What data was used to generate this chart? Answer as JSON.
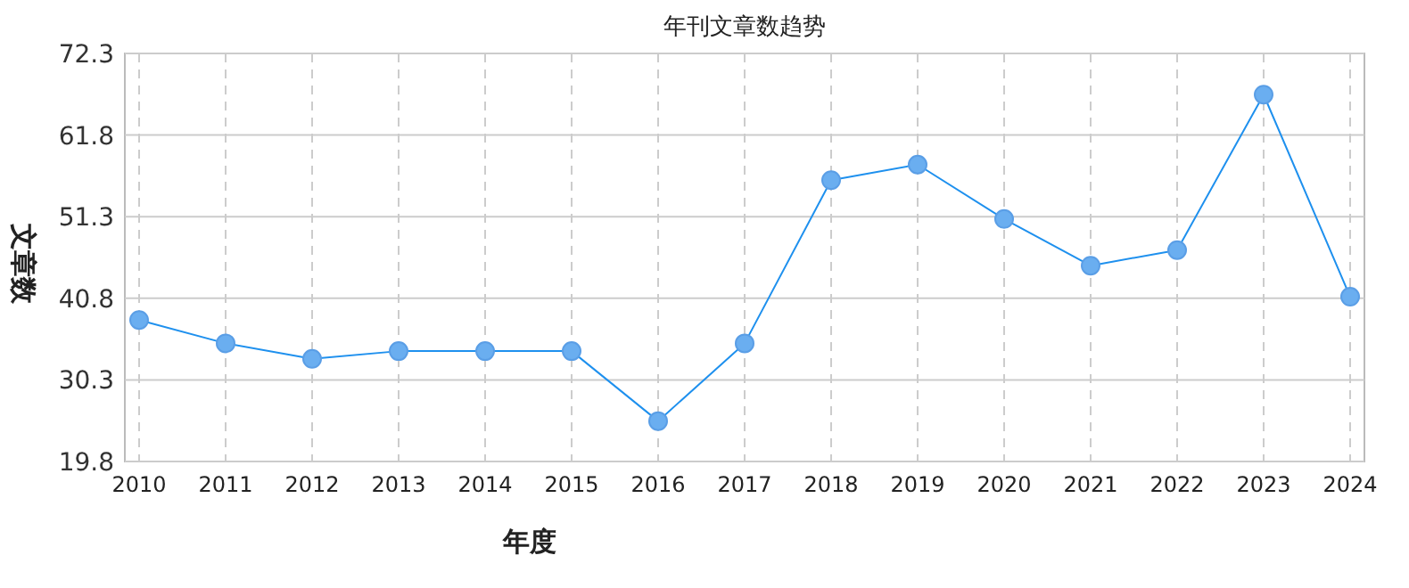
{
  "chart_data": {
    "type": "line",
    "title": "年刊文章数趋势",
    "xlabel": "年度",
    "ylabel": "文章数",
    "categories": [
      "2010",
      "2011",
      "2012",
      "2013",
      "2014",
      "2015",
      "2016",
      "2017",
      "2018",
      "2019",
      "2020",
      "2021",
      "2022",
      "2023",
      "2024"
    ],
    "series": [
      {
        "color": "#1e90ee",
        "values": [
          38,
          35,
          33,
          34,
          34,
          34,
          25,
          35,
          56,
          58,
          51,
          45,
          47,
          67,
          41
        ]
      }
    ],
    "ylim": [
      19.8,
      72.3
    ],
    "yticks": [
      19.8,
      30.3,
      40.8,
      51.3,
      61.8,
      72.3
    ],
    "grid": true,
    "marker": "circle",
    "line_style": "solid"
  }
}
